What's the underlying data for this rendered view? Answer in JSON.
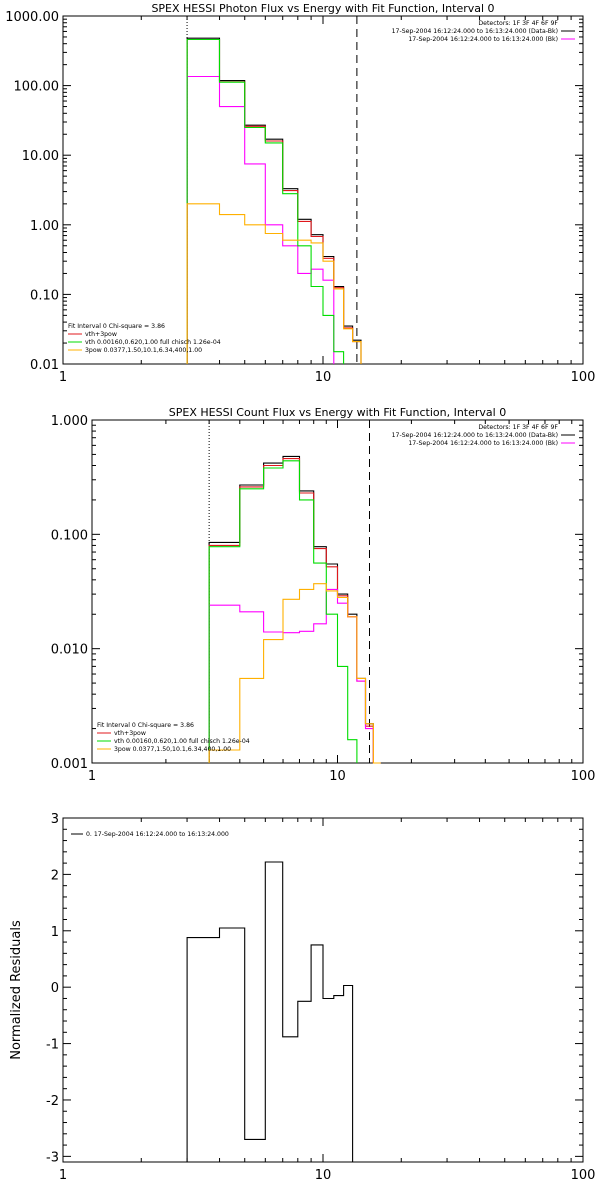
{
  "chart_data": [
    {
      "type": "line",
      "title": "SPEX HESSI Photon Flux vs Energy with Fit Function, Interval 0",
      "xscale": "log",
      "yscale": "log",
      "xlim": [
        1,
        100
      ],
      "ylim": [
        0.01,
        1000
      ],
      "xticks": [
        1,
        10,
        100
      ],
      "xtick_labels": [
        "1",
        "10",
        "100"
      ],
      "yticks": [
        0.01,
        0.1,
        1,
        10,
        100,
        1000
      ],
      "ytick_labels": [
        "0.01",
        "0.10",
        "1.00",
        "10.00",
        "100.00",
        "1000.00"
      ],
      "vlines": [
        {
          "x": 3.0,
          "style": "dotted"
        },
        {
          "x": 13.5,
          "style": "dashed"
        }
      ],
      "info_lines": [
        "Detectors: 1F 3F 4F 6F 9F",
        "17-Sep-2004 16:12:24.000 to 16:13:24.000 (Data-Bk)",
        "17-Sep-2004 16:12:24.000 to 16:13:24.000 (Bk)"
      ],
      "fit_header": "Fit Interval 0   Chi-square = 3.86",
      "x_edges": [
        3.0,
        4.0,
        5.0,
        6.0,
        7.0,
        8.0,
        9.0,
        10.0,
        11.0,
        12.0,
        13.0,
        14.0,
        15.0
      ],
      "series": [
        {
          "name": "",
          "color": "#000000",
          "values": [
            480,
            118,
            27,
            17,
            3.3,
            1.2,
            0.72,
            0.35,
            0.13,
            0.035,
            0.022,
            null
          ]
        },
        {
          "name": "",
          "color": "#e0181c",
          "values": [
            460,
            113,
            26,
            16,
            3.1,
            1.12,
            0.68,
            0.33,
            0.125,
            0.033,
            0.021,
            null
          ]
        },
        {
          "name": "",
          "color": "#ff00ff",
          "values": [
            135,
            50,
            7.5,
            1.0,
            0.5,
            0.2,
            0.23,
            0.16,
            null,
            null,
            null,
            null
          ]
        },
        {
          "name": "",
          "color": "#00dd00",
          "values": [
            460,
            112,
            25,
            15,
            2.8,
            0.5,
            0.13,
            0.05,
            0.015,
            null,
            null,
            null
          ]
        },
        {
          "name": "",
          "color": "#ffb000",
          "values": [
            2.0,
            1.4,
            1.0,
            0.75,
            0.6,
            0.6,
            0.55,
            0.3,
            0.12,
            0.032,
            0.021,
            null
          ]
        }
      ],
      "legend": [
        {
          "label": "vth+3pow",
          "color": "#e0181c"
        },
        {
          "label": "vth 0.00160,0.620,1.00   full chisch 1.26e-04",
          "color": "#00dd00"
        },
        {
          "label": "3pow 0.0377,1.50,10.1,6.34,400,1.00",
          "color": "#ffb000"
        }
      ]
    },
    {
      "type": "line",
      "title": "SPEX HESSI Count Flux vs Energy with Fit Function, Interval 0",
      "xscale": "log",
      "yscale": "log",
      "xlim": [
        1,
        100
      ],
      "ylim": [
        0.001,
        1
      ],
      "xticks": [
        1,
        10,
        100
      ],
      "xtick_labels": [
        "1",
        "10",
        "100"
      ],
      "yticks": [
        0.001,
        0.01,
        0.1,
        1
      ],
      "ytick_labels": [
        "0.001",
        "0.010",
        "0.100",
        "1.000"
      ],
      "vlines": [
        {
          "x": 3.0,
          "style": "dotted"
        },
        {
          "x": 13.5,
          "style": "dashed"
        }
      ],
      "info_lines": [
        "Detectors: 1F 3F 4F 6F 9F",
        "17-Sep-2004 16:12:24.000 to 16:13:24.000 (Data-Bk)",
        "17-Sep-2004 16:12:24.000 to 16:13:24.000 (Bk)"
      ],
      "fit_header": "Fit Interval 0   Chi-square = 3.86",
      "x_edges": [
        3.0,
        4.0,
        5.0,
        6.0,
        7.0,
        8.0,
        9.0,
        10.0,
        11.0,
        12.0,
        13.0,
        14.0,
        15.0,
        16.0,
        17.0
      ],
      "series": [
        {
          "name": "",
          "color": "#000000",
          "values": [
            0.085,
            0.27,
            0.42,
            0.48,
            0.24,
            0.078,
            0.055,
            0.03,
            0.02,
            0.0055,
            0.0022,
            0.001,
            null,
            null
          ]
        },
        {
          "name": "",
          "color": "#e0181c",
          "values": [
            0.08,
            0.26,
            0.4,
            0.46,
            0.23,
            0.075,
            0.052,
            0.029,
            0.019,
            0.0052,
            0.0021,
            0.001,
            null,
            null
          ]
        },
        {
          "name": "",
          "color": "#ff00ff",
          "values": [
            0.024,
            0.021,
            0.014,
            0.0138,
            0.0142,
            0.0165,
            0.033,
            0.025,
            0.019,
            0.0052,
            0.002,
            null,
            null,
            null
          ]
        },
        {
          "name": "",
          "color": "#00dd00",
          "values": [
            0.078,
            0.25,
            0.38,
            0.44,
            0.2,
            0.056,
            0.02,
            0.007,
            0.0016,
            null,
            null,
            null,
            null,
            null
          ]
        },
        {
          "name": "",
          "color": "#ffb000",
          "values": [
            0.0013,
            0.0055,
            0.012,
            0.027,
            0.033,
            0.037,
            0.032,
            0.028,
            0.019,
            0.0055,
            0.0022,
            0.001,
            null,
            null
          ]
        }
      ],
      "legend": [
        {
          "label": "vth+3pow",
          "color": "#e0181c"
        },
        {
          "label": "vth 0.00160,0.620,1.00   full chisch 1.26e-04",
          "color": "#00dd00"
        },
        {
          "label": "3pow 0.0377,1.50,10.1,6.34,400,1.00",
          "color": "#ffb000"
        }
      ]
    },
    {
      "type": "line",
      "title": "",
      "ylabel": "Normalized Residuals",
      "xscale": "log",
      "yscale": "linear",
      "xlim": [
        1,
        100
      ],
      "ylim": [
        -3.1,
        3
      ],
      "xticks": [
        1,
        10,
        100
      ],
      "xtick_labels": [
        "1",
        "10",
        "100"
      ],
      "yticks": [
        -3,
        -2,
        -1,
        0,
        1,
        2,
        3
      ],
      "ytick_labels": [
        "-3",
        "-2",
        "-1",
        "0",
        "1",
        "2",
        "3"
      ],
      "legend": [
        {
          "label": "0. 17-Sep-2004 16:12:24.000 to 16:13:24.000",
          "color": "#000000"
        }
      ],
      "x_edges": [
        3.0,
        4.0,
        5.0,
        6.0,
        7.0,
        8.0,
        9.0,
        10.0,
        11.0,
        12.0,
        13.0,
        14.0
      ],
      "series": [
        {
          "name": "",
          "color": "#000000",
          "values": [
            0.88,
            1.05,
            -2.7,
            2.22,
            -0.88,
            -0.25,
            0.75,
            -0.2,
            -0.15,
            0.03,
            null
          ]
        }
      ]
    }
  ]
}
